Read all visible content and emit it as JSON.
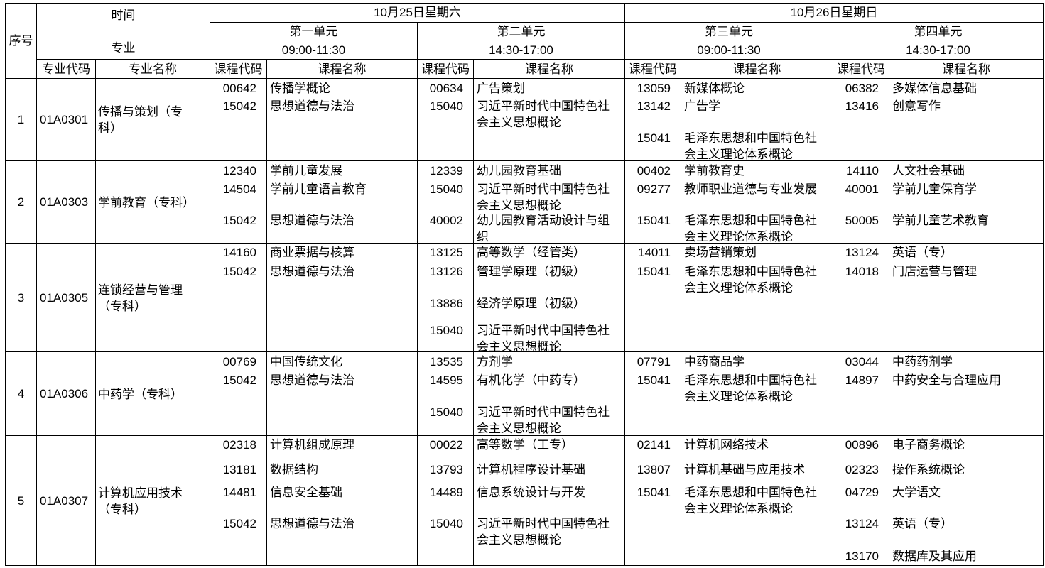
{
  "header": {
    "corner_top": "时间",
    "corner_bottom": "专业",
    "index_label": "序号",
    "days": [
      "10月25日星期六",
      "10月26日星期日"
    ],
    "units": [
      {
        "name": "第一单元",
        "time": "09:00-11:30"
      },
      {
        "name": "第二单元",
        "time": "14:30-17:00"
      },
      {
        "name": "第三单元",
        "time": "09:00-11:30"
      },
      {
        "name": "第四单元",
        "time": "14:30-17:00"
      }
    ],
    "columns": [
      "专业代码",
      "专业名称",
      "课程代码",
      "课程名称",
      "课程代码",
      "课程名称",
      "课程代码",
      "课程名称",
      "课程代码",
      "课程名称"
    ]
  },
  "rows": [
    {
      "index": 1,
      "major_code": "01A0301",
      "major_name": "传播与策划（专科）",
      "units": [
        [
          {
            "code": "00642",
            "name": "传播学概论"
          },
          {
            "code": "15042",
            "name": "思想道德与法治"
          }
        ],
        [
          {
            "code": "00634",
            "name": "广告策划"
          },
          {
            "code": "15040",
            "name": "习近平新时代中国特色社会主义思想概论"
          }
        ],
        [
          {
            "code": "13059",
            "name": "新媒体概论"
          },
          {
            "code": "13142",
            "name": "广告学"
          },
          {
            "code": "15041",
            "name": "毛泽东思想和中国特色社会主义理论体系概论"
          }
        ],
        [
          {
            "code": "06382",
            "name": "多媒体信息基础"
          },
          {
            "code": "13416",
            "name": "创意写作"
          }
        ]
      ]
    },
    {
      "index": 2,
      "major_code": "01A0303",
      "major_name": "学前教育（专科）",
      "units": [
        [
          {
            "code": "12340",
            "name": "学前儿童发展"
          },
          {
            "code": "14504",
            "name": "学前儿童语言教育"
          },
          {
            "code": "15042",
            "name": "思想道德与法治"
          }
        ],
        [
          {
            "code": "12339",
            "name": "幼儿园教育基础"
          },
          {
            "code": "15040",
            "name": "习近平新时代中国特色社会主义思想概论"
          },
          {
            "code": "40002",
            "name": "幼儿园教育活动设计与组织"
          }
        ],
        [
          {
            "code": "00402",
            "name": "学前教育史"
          },
          {
            "code": "09277",
            "name": "教师职业道德与专业发展"
          },
          {
            "code": "15041",
            "name": "毛泽东思想和中国特色社会主义理论体系概论"
          }
        ],
        [
          {
            "code": "14110",
            "name": "人文社会基础"
          },
          {
            "code": "40001",
            "name": "学前儿童保育学"
          },
          {
            "code": "50005",
            "name": "学前儿童艺术教育"
          }
        ]
      ]
    },
    {
      "index": 3,
      "major_code": "01A0305",
      "major_name": "连锁经营与管理（专科）",
      "units": [
        [
          {
            "code": "14160",
            "name": "商业票据与核算"
          },
          {
            "code": "15042",
            "name": "思想道德与法治"
          }
        ],
        [
          {
            "code": "13125",
            "name": "高等数学（经管类）"
          },
          {
            "code": "13126",
            "name": "管理学原理（初级）"
          },
          {
            "code": "13886",
            "name": "经济学原理（初级）"
          },
          {
            "code": "15040",
            "name": "习近平新时代中国特色社会主义思想概论"
          }
        ],
        [
          {
            "code": "14011",
            "name": "卖场营销策划"
          },
          {
            "code": "15041",
            "name": "毛泽东思想和中国特色社会主义理论体系概论"
          }
        ],
        [
          {
            "code": "13124",
            "name": "英语（专）"
          },
          {
            "code": "14018",
            "name": "门店运营与管理"
          }
        ]
      ]
    },
    {
      "index": 4,
      "major_code": "01A0306",
      "major_name": "中药学（专科）",
      "units": [
        [
          {
            "code": "00769",
            "name": "中国传统文化"
          },
          {
            "code": "15042",
            "name": "思想道德与法治"
          }
        ],
        [
          {
            "code": "13535",
            "name": "方剂学"
          },
          {
            "code": "14595",
            "name": "有机化学（中药专）"
          },
          {
            "code": "15040",
            "name": "习近平新时代中国特色社会主义思想概论"
          }
        ],
        [
          {
            "code": "07791",
            "name": "中药商品学"
          },
          {
            "code": "15041",
            "name": "毛泽东思想和中国特色社会主义理论体系概论"
          }
        ],
        [
          {
            "code": "03044",
            "name": "中药药剂学"
          },
          {
            "code": "14897",
            "name": "中药安全与合理应用"
          }
        ]
      ]
    },
    {
      "index": 5,
      "major_code": "01A0307",
      "major_name": "计算机应用技术（专科）",
      "units": [
        [
          {
            "code": "02318",
            "name": "计算机组成原理"
          },
          {
            "code": "13181",
            "name": "数据结构"
          },
          {
            "code": "14481",
            "name": "信息安全基础"
          },
          {
            "code": "15042",
            "name": "思想道德与法治"
          }
        ],
        [
          {
            "code": "00022",
            "name": "高等数学（工专）"
          },
          {
            "code": "13793",
            "name": "计算机程序设计基础"
          },
          {
            "code": "14489",
            "name": "信息系统设计与开发"
          },
          {
            "code": "15040",
            "name": "习近平新时代中国特色社会主义思想概论"
          }
        ],
        [
          {
            "code": "02141",
            "name": "计算机网络技术"
          },
          {
            "code": "13807",
            "name": "计算机基础与应用技术"
          },
          {
            "code": "15041",
            "name": "毛泽东思想和中国特色社会主义理论体系概论"
          }
        ],
        [
          {
            "code": "00896",
            "name": "电子商务概论"
          },
          {
            "code": "02323",
            "name": "操作系统概论"
          },
          {
            "code": "04729",
            "name": "大学语文"
          },
          {
            "code": "13124",
            "name": "英语（专）"
          },
          {
            "code": "13170",
            "name": "数据库及其应用"
          }
        ]
      ]
    }
  ]
}
